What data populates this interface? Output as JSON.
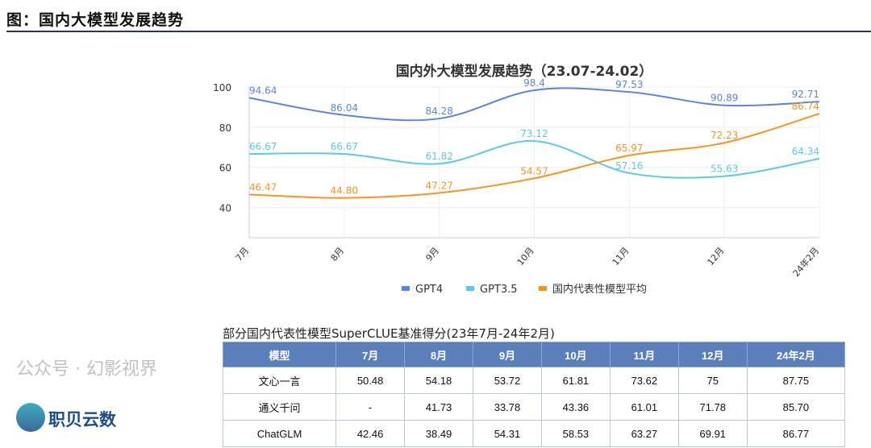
{
  "header": {
    "title": "图：国内大模型发展趋势"
  },
  "chart_data": {
    "type": "line",
    "title": "国内外大模型发展趋势（23.07-24.02）",
    "categories": [
      "7月",
      "8月",
      "9月",
      "10月",
      "11月",
      "12月",
      "24年2月"
    ],
    "ylim": [
      25,
      100
    ],
    "yticks": [
      40,
      60,
      80,
      100
    ],
    "grid": true,
    "legend": "bottom",
    "series": [
      {
        "name": "GPT4",
        "color": "#5b84e0",
        "values": [
          94.64,
          86.04,
          84.28,
          98.4,
          97.53,
          90.89,
          92.71
        ],
        "labels": [
          "94.64",
          "86.04",
          "84.28",
          "98.4",
          "97.53",
          "90.89",
          "92.71"
        ]
      },
      {
        "name": "GPT3.5",
        "color": "#5bc8ea",
        "values": [
          66.67,
          66.67,
          61.82,
          73.12,
          57.16,
          55.63,
          64.34
        ],
        "labels": [
          "66.67",
          "66.67",
          "61.82",
          "73.12",
          "57.16",
          "55.63",
          "64.34"
        ]
      },
      {
        "name": "国内代表性模型平均",
        "color": "#f7941d",
        "values": [
          46.47,
          44.8,
          47.27,
          54.57,
          65.97,
          72.23,
          86.74
        ],
        "labels": [
          "46.47",
          "44.80",
          "47.27",
          "54.57",
          "65.97",
          "72.23",
          "86.74"
        ]
      }
    ]
  },
  "table": {
    "title": "部分国内代表性模型SuperCLUE基准得分(23年7月-24年2月)",
    "headers": [
      "模型",
      "7月",
      "8月",
      "9月",
      "10月",
      "11月",
      "12月",
      "24年2月"
    ],
    "rows": [
      [
        "文心一言",
        "50.48",
        "54.18",
        "53.72",
        "61.81",
        "73.62",
        "75",
        "87.75"
      ],
      [
        "通义千问",
        "-",
        "41.73",
        "33.78",
        "43.36",
        "61.01",
        "71.78",
        "85.70"
      ],
      [
        "ChatGLM",
        "42.46",
        "38.49",
        "54.31",
        "58.53",
        "63.27",
        "69.91",
        "86.77"
      ]
    ]
  },
  "watermark": {
    "text": "公众号 · 幻影视界",
    "logo": "职贝云数"
  }
}
